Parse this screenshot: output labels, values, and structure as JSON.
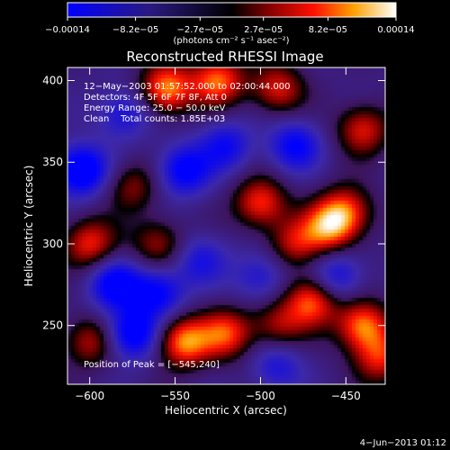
{
  "chart_data": {
    "type": "heatmap",
    "title": "Reconstructed RHESSI Image",
    "xlabel": "Heliocentric X (arcsec)",
    "ylabel": "Heliocentric Y (arcsec)",
    "xlim": [
      -613,
      -427
    ],
    "ylim": [
      214,
      408
    ],
    "x_ticks": [
      -600,
      -550,
      -500,
      -450
    ],
    "y_ticks": [
      250,
      300,
      350,
      400
    ],
    "x_tick_labels": [
      "−600",
      "−550",
      "−500",
      "−450"
    ],
    "y_tick_labels": [
      "250",
      "300",
      "350",
      "400"
    ],
    "colorbar": {
      "ticks": [
        -0.00014,
        -8.2e-05,
        -2.7e-05,
        2.7e-05,
        8.2e-05,
        0.00014
      ],
      "tick_labels": [
        "−0.00014",
        "−8.2e−05",
        "−2.7e−05",
        "2.7e−05",
        "8.2e−05",
        "0.00014"
      ],
      "units": "(photons cm⁻² s⁻¹ asec⁻²)",
      "vmin": -0.00014,
      "vmax": 0.00014
    },
    "annotations": [
      "12−May−2003 01:57:52.000 to 02:00:44.000",
      "Detectors: 4F 5F 6F 7F 8F, Att 0",
      "Energy Range: 25.0 − 50.0 keV",
      "Clean    Total counts: 1.85E+03"
    ],
    "peak_text": "Position of Peak = [−545,240]",
    "peak": [
      -545,
      240
    ],
    "bright_blobs": [
      {
        "x": -555,
        "y": 395,
        "v": 1.0
      },
      {
        "x": -525,
        "y": 400,
        "v": 0.9
      },
      {
        "x": -490,
        "y": 395,
        "v": 0.7
      },
      {
        "x": -440,
        "y": 370,
        "v": 0.7
      },
      {
        "x": -600,
        "y": 300,
        "v": 0.75
      },
      {
        "x": -560,
        "y": 300,
        "v": 0.55
      },
      {
        "x": -575,
        "y": 335,
        "v": 0.5
      },
      {
        "x": -500,
        "y": 325,
        "v": 0.8
      },
      {
        "x": -480,
        "y": 300,
        "v": 0.6
      },
      {
        "x": -460,
        "y": 310,
        "v": 0.85
      },
      {
        "x": -450,
        "y": 320,
        "v": 0.75
      },
      {
        "x": -545,
        "y": 240,
        "v": 1.0
      },
      {
        "x": -520,
        "y": 245,
        "v": 0.8
      },
      {
        "x": -490,
        "y": 250,
        "v": 0.55
      },
      {
        "x": -470,
        "y": 265,
        "v": 0.9
      },
      {
        "x": -440,
        "y": 250,
        "v": 0.95
      },
      {
        "x": -600,
        "y": 240,
        "v": 0.6
      },
      {
        "x": -430,
        "y": 230,
        "v": 0.7
      }
    ],
    "dark_blobs": [
      {
        "x": -605,
        "y": 345,
        "v": -1.0
      },
      {
        "x": -580,
        "y": 380,
        "v": -0.55
      },
      {
        "x": -545,
        "y": 345,
        "v": -0.8
      },
      {
        "x": -520,
        "y": 360,
        "v": -0.6
      },
      {
        "x": -480,
        "y": 360,
        "v": -0.7
      },
      {
        "x": -585,
        "y": 275,
        "v": -0.8
      },
      {
        "x": -560,
        "y": 270,
        "v": -0.75
      },
      {
        "x": -535,
        "y": 290,
        "v": -0.5
      },
      {
        "x": -500,
        "y": 280,
        "v": -0.5
      },
      {
        "x": -455,
        "y": 280,
        "v": -0.6
      },
      {
        "x": -575,
        "y": 245,
        "v": -0.9
      },
      {
        "x": -490,
        "y": 225,
        "v": -0.5
      }
    ]
  },
  "footer": {
    "date": "4−Jun−2013 01:12"
  },
  "colors": {
    "background": "#000000",
    "foreground": "#ffffff"
  }
}
